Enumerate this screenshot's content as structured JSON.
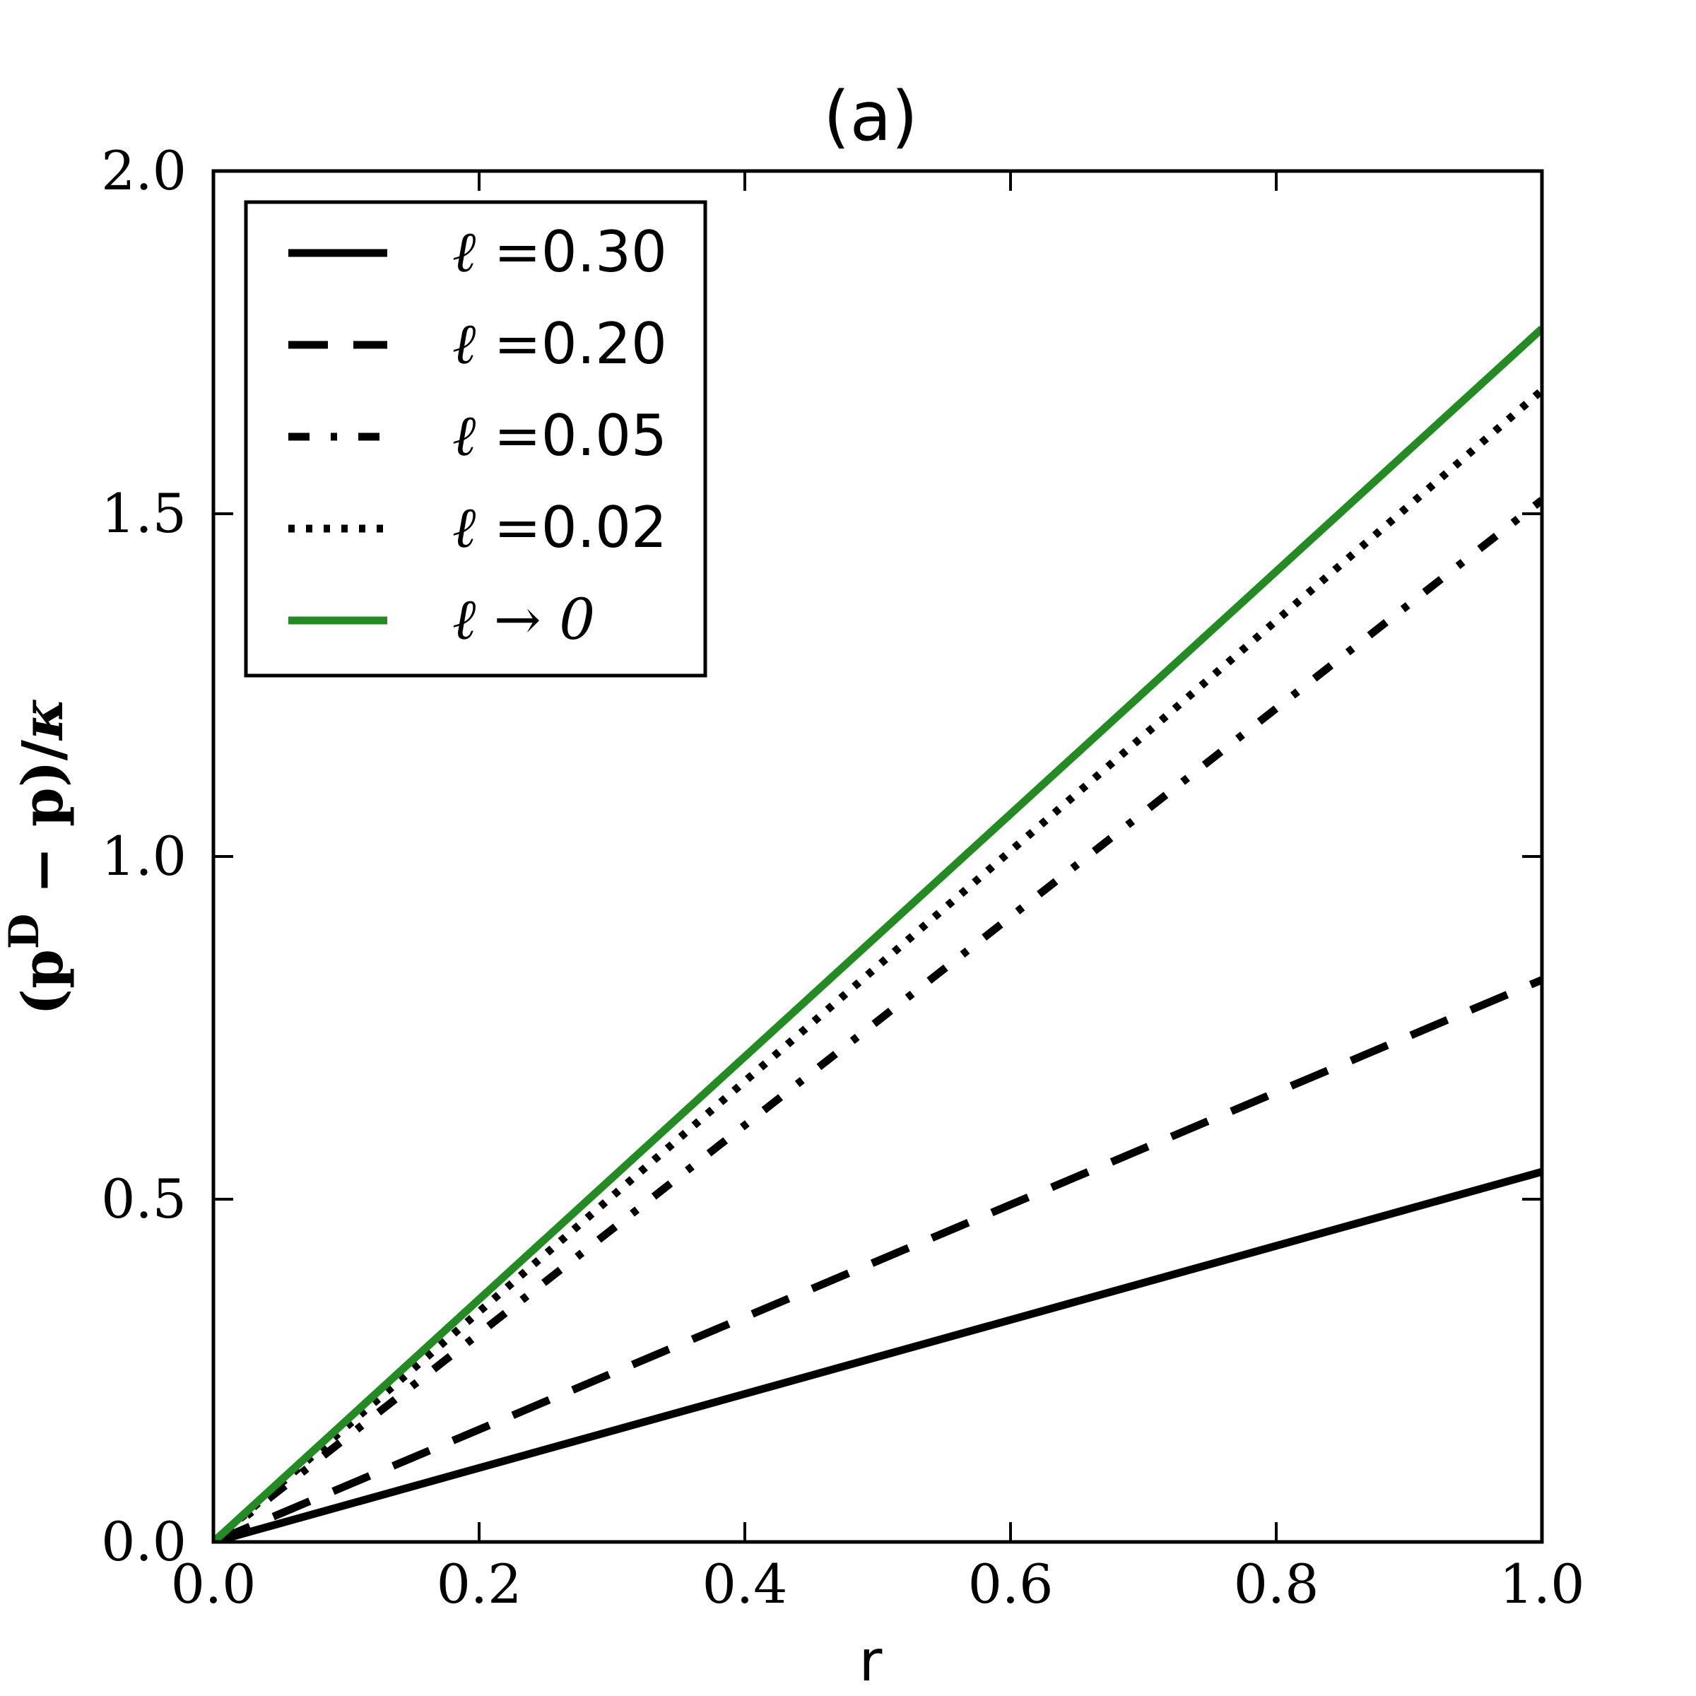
{
  "chart_data": {
    "type": "line",
    "title": "(a)",
    "xlabel": "r",
    "ylabel": "(pD − p)/κ",
    "ylabel_parts": {
      "open": "(p",
      "sup": "D",
      "rest": " − p)/",
      "kappa": "κ"
    },
    "xlim": [
      0.0,
      1.0
    ],
    "ylim": [
      0.0,
      2.0
    ],
    "xticks": [
      "0.0",
      "0.2",
      "0.4",
      "0.6",
      "0.8",
      "1.0"
    ],
    "yticks": [
      "0.0",
      "0.5",
      "1.0",
      "1.5",
      "2.0"
    ],
    "grid": false,
    "legend_position": "top-left",
    "series": [
      {
        "name": "ℓ =0.30",
        "label_math": "ℓ =",
        "label_value": "0.30",
        "style": "solid",
        "color": "#000000",
        "x": [
          0.0,
          1.0
        ],
        "y": [
          0.0,
          0.54
        ]
      },
      {
        "name": "ℓ =0.20",
        "label_math": "ℓ =",
        "label_value": "0.20",
        "style": "dashed",
        "color": "#000000",
        "x": [
          0.0,
          1.0
        ],
        "y": [
          0.0,
          0.82
        ]
      },
      {
        "name": "ℓ =0.05",
        "label_math": "ℓ =",
        "label_value": "0.05",
        "style": "dashdot",
        "color": "#000000",
        "x": [
          0.0,
          1.0
        ],
        "y": [
          0.0,
          1.52
        ]
      },
      {
        "name": "ℓ =0.02",
        "label_math": "ℓ =",
        "label_value": "0.02",
        "style": "dotted",
        "color": "#000000",
        "x": [
          0.0,
          1.0
        ],
        "y": [
          0.0,
          1.68
        ]
      },
      {
        "name": "ℓ → 0",
        "label_math": "ℓ → 0",
        "label_value": "",
        "style": "solid",
        "color": "#228b22",
        "x": [
          0.0,
          1.0
        ],
        "y": [
          0.0,
          1.77
        ]
      }
    ]
  }
}
